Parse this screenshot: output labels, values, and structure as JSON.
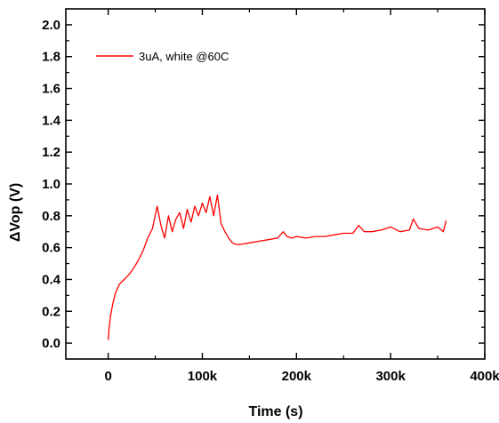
{
  "chart_data": {
    "type": "line",
    "xlabel": "Time (s)",
    "ylabel": "ΔVop (V)",
    "xlim": [
      -45000,
      400000
    ],
    "ylim": [
      -0.1,
      2.1
    ],
    "x_ticks": [
      0,
      100000,
      200000,
      300000,
      400000
    ],
    "x_tick_labels": [
      "0",
      "100k",
      "200k",
      "300k",
      "400k"
    ],
    "y_ticks": [
      0.0,
      0.2,
      0.4,
      0.6,
      0.8,
      1.0,
      1.2,
      1.4,
      1.6,
      1.8,
      2.0
    ],
    "y_tick_labels": [
      "0.0",
      "0.2",
      "0.4",
      "0.6",
      "0.8",
      "1.0",
      "1.2",
      "1.4",
      "1.6",
      "1.8",
      "2.0"
    ],
    "grid": false,
    "legend_position": "top-left",
    "color": "#ff0000",
    "series": [
      {
        "name": "3uA, white @60C",
        "x": [
          0,
          1000,
          2500,
          5000,
          8000,
          12000,
          17000,
          22000,
          27000,
          32000,
          37000,
          42000,
          47000,
          52000,
          56000,
          60000,
          64000,
          68000,
          72000,
          76000,
          80000,
          84000,
          88000,
          92000,
          96000,
          100000,
          104000,
          108000,
          112000,
          116000,
          120000,
          124000,
          128000,
          132000,
          136000,
          140000,
          150000,
          160000,
          170000,
          180000,
          186000,
          190000,
          195000,
          200000,
          210000,
          220000,
          230000,
          240000,
          250000,
          260000,
          266000,
          272000,
          280000,
          290000,
          300000,
          310000,
          320000,
          324000,
          330000,
          340000,
          350000,
          356000,
          359000
        ],
        "values": [
          0.02,
          0.1,
          0.17,
          0.25,
          0.32,
          0.37,
          0.4,
          0.43,
          0.47,
          0.52,
          0.58,
          0.66,
          0.72,
          0.86,
          0.74,
          0.66,
          0.8,
          0.7,
          0.78,
          0.82,
          0.72,
          0.84,
          0.76,
          0.86,
          0.8,
          0.88,
          0.82,
          0.92,
          0.8,
          0.93,
          0.75,
          0.7,
          0.66,
          0.63,
          0.62,
          0.62,
          0.63,
          0.64,
          0.65,
          0.66,
          0.7,
          0.67,
          0.66,
          0.67,
          0.66,
          0.67,
          0.67,
          0.68,
          0.69,
          0.69,
          0.74,
          0.7,
          0.7,
          0.71,
          0.73,
          0.7,
          0.71,
          0.78,
          0.72,
          0.71,
          0.73,
          0.7,
          0.77
        ]
      }
    ]
  }
}
